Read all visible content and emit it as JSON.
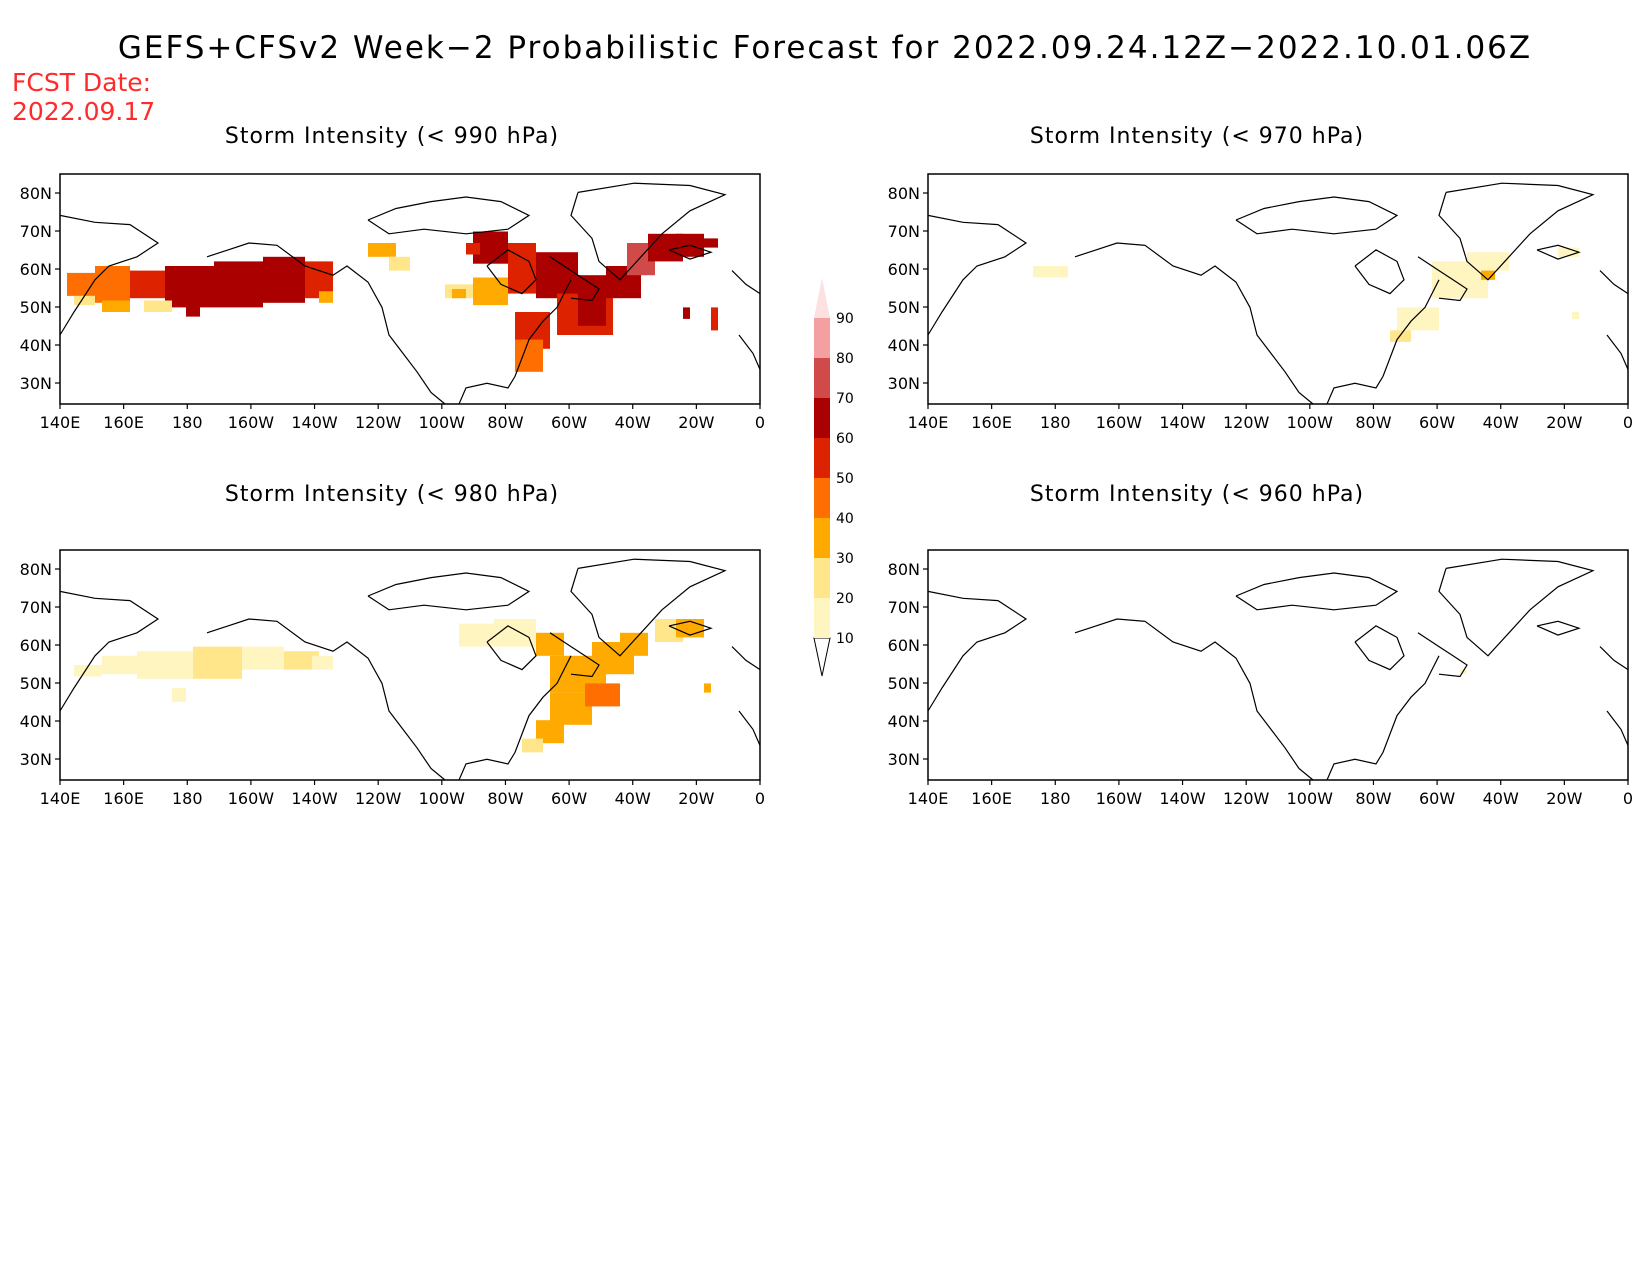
{
  "title": "GEFS+CFSv2 Week−2 Probabilistic Forecast for 2022.09.24.12Z−2022.10.01.06Z",
  "fcst_date": {
    "label": "FCST Date:",
    "value": "2022.09.17"
  },
  "panels": [
    {
      "id": "p990",
      "title": "Storm Intensity (< 990 hPa)"
    },
    {
      "id": "p970",
      "title": "Storm Intensity (< 970 hPa)"
    },
    {
      "id": "p980",
      "title": "Storm Intensity (< 980 hPa)"
    },
    {
      "id": "p960",
      "title": "Storm Intensity (< 960 hPa)"
    }
  ],
  "lat_labels": [
    "80N",
    "70N",
    "60N",
    "50N",
    "40N",
    "30N"
  ],
  "lon_labels": [
    "140E",
    "160E",
    "180",
    "160W",
    "140W",
    "120W",
    "100W",
    "80W",
    "60W",
    "40W",
    "20W",
    "0"
  ],
  "colorbar": {
    "levels": [
      10,
      20,
      30,
      40,
      50,
      60,
      70,
      80,
      90
    ],
    "colors": [
      "#fff5c0",
      "#ffe68a",
      "#ffaa00",
      "#ff6e00",
      "#dd2200",
      "#aa0000",
      "#d14a4a",
      "#f5a0a0",
      "#fde0e0"
    ],
    "label_texts": [
      "10",
      "20",
      "30",
      "40",
      "50",
      "60",
      "70",
      "80",
      "90"
    ]
  }
}
